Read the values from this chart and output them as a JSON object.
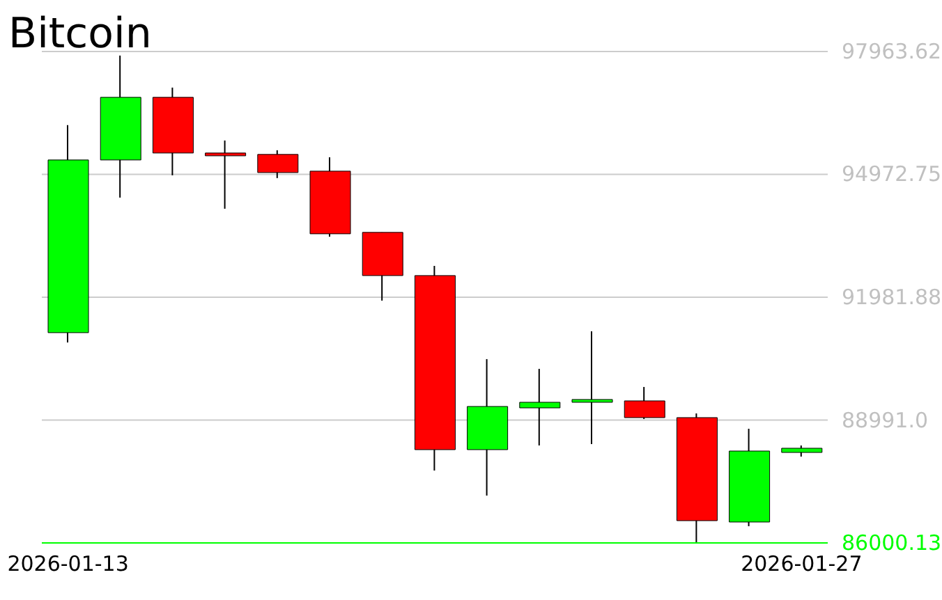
{
  "chart_data": {
    "type": "candlestick",
    "title": "Bitcoin",
    "categories": [
      "2026-01-13",
      null,
      null,
      null,
      null,
      null,
      null,
      null,
      null,
      null,
      null,
      null,
      null,
      null,
      "2026-01-27"
    ],
    "ohlc": [
      [
        91119,
        96170,
        90882,
        95323
      ],
      [
        95323,
        97865,
        94407,
        96848
      ],
      [
        96848,
        97085,
        94950,
        95492
      ],
      [
        95492,
        95797,
        94136,
        95424
      ],
      [
        95458,
        95560,
        94882,
        95017
      ],
      [
        95051,
        95390,
        93458,
        93526
      ],
      [
        93560,
        93560,
        91899,
        92509
      ],
      [
        92509,
        92746,
        87763,
        88271
      ],
      [
        88271,
        90475,
        87153,
        89322
      ],
      [
        89288,
        90238,
        88373,
        89424
      ],
      [
        89424,
        91153,
        88407,
        89458
      ],
      [
        89458,
        89797,
        89017,
        89051
      ],
      [
        89051,
        89153,
        86000.13,
        86542
      ],
      [
        86509,
        88780,
        86407,
        88237
      ],
      [
        88203,
        88373,
        88102,
        88305
      ]
    ],
    "colors": [
      "#00ff00",
      "#00ff00",
      "#ff0000",
      "#ff0000",
      "#ff0000",
      "#ff0000",
      "#ff0000",
      "#ff0000",
      "#00ff00",
      "#00ff00",
      "#00ff00",
      "#ff0000",
      "#ff0000",
      "#00ff00",
      "#00ff00"
    ],
    "ylim": [
      86000.13,
      97963.62
    ],
    "yticks": [
      86000.13,
      {
        "value": 88991.0,
        "label": "88991.0"
      },
      91981.88,
      94972.75,
      97963.62
    ],
    "grid": "y",
    "legend": false
  }
}
